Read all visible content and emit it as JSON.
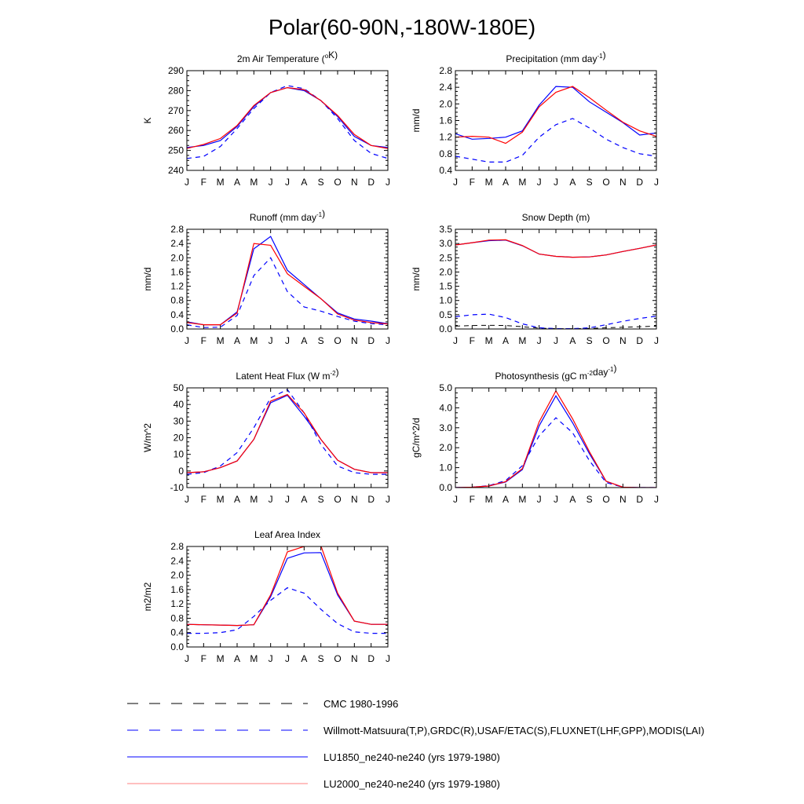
{
  "page_title": "Polar(60-90N,-180W-180E)",
  "months": [
    "J",
    "F",
    "M",
    "A",
    "M",
    "J",
    "J",
    "A",
    "S",
    "O",
    "N",
    "D",
    "J"
  ],
  "legend": [
    {
      "label": "CMC 1980-1996",
      "color": "#000000",
      "style": "dashed"
    },
    {
      "label": "Willmott-Matsuura(T,P),GRDC(R),USAF/ETAC(S),FLUXNET(LHF,GPP),MODIS(LAI)",
      "color": "#0000ff",
      "style": "dashed"
    },
    {
      "label": "LU1850_ne240-ne240 (yrs 1979-1980)",
      "color": "#0000ff",
      "style": "solid"
    },
    {
      "label": "LU2000_ne240-ne240 (yrs 1979-1980)",
      "color": "#ff0000",
      "style": "solid"
    }
  ],
  "chart_data": [
    {
      "type": "line",
      "title": "2m Air Temperature (°K)",
      "title_parts": {
        "pre": "2m Air Temperature (",
        "sup": "o",
        "post": "K)"
      },
      "ylabel": "K",
      "ylim": [
        240,
        290
      ],
      "yticks": [
        "240",
        "250",
        "260",
        "270",
        "280",
        "290"
      ],
      "categories": [
        "J",
        "F",
        "M",
        "A",
        "M",
        "J",
        "J",
        "A",
        "S",
        "O",
        "N",
        "D",
        "J"
      ],
      "series": [
        {
          "style": "obs",
          "values": [
            246,
            247,
            252,
            261,
            271,
            279,
            282.5,
            281,
            275,
            266,
            255,
            248.5,
            246
          ]
        },
        {
          "style": "lu1850",
          "values": [
            251.5,
            252.5,
            255,
            262,
            272,
            279,
            281.5,
            280,
            275,
            267,
            257,
            252.5,
            251.5
          ]
        },
        {
          "style": "lu2000",
          "values": [
            251,
            253,
            256,
            262.5,
            272.5,
            279,
            281.5,
            280.5,
            275,
            267.5,
            258,
            252.5,
            251
          ]
        }
      ]
    },
    {
      "type": "line",
      "title": "Precipitation (mm day-1)",
      "title_parts": {
        "pre": "Precipitation (mm day",
        "sup": "-1",
        "post": ")"
      },
      "ylabel": "mm/d",
      "ylim": [
        0.4,
        2.8
      ],
      "yticks": [
        "0.4",
        "0.8",
        "1.2",
        "1.6",
        "2.0",
        "2.4",
        "2.8"
      ],
      "categories": [
        "J",
        "F",
        "M",
        "A",
        "M",
        "J",
        "J",
        "A",
        "S",
        "O",
        "N",
        "D",
        "J"
      ],
      "series": [
        {
          "style": "obs",
          "values": [
            0.74,
            0.67,
            0.6,
            0.6,
            0.76,
            1.2,
            1.5,
            1.65,
            1.42,
            1.15,
            0.95,
            0.8,
            0.74
          ]
        },
        {
          "style": "lu1850",
          "values": [
            1.28,
            1.15,
            1.17,
            1.2,
            1.35,
            1.97,
            2.42,
            2.4,
            2.05,
            1.8,
            1.55,
            1.25,
            1.3
          ]
        },
        {
          "style": "lu2000",
          "values": [
            1.2,
            1.22,
            1.2,
            1.05,
            1.32,
            1.93,
            2.28,
            2.42,
            2.15,
            1.85,
            1.56,
            1.35,
            1.22
          ]
        }
      ]
    },
    {
      "type": "line",
      "title": "Runoff (mm day-1)",
      "title_parts": {
        "pre": "Runoff (mm day",
        "sup": "-1",
        "post": ")"
      },
      "ylabel": "mm/d",
      "ylim": [
        0.0,
        2.8
      ],
      "yticks": [
        "0.0",
        "0.4",
        "0.8",
        "1.2",
        "1.6",
        "2.0",
        "2.4",
        "2.8"
      ],
      "categories": [
        "J",
        "F",
        "M",
        "A",
        "M",
        "J",
        "J",
        "A",
        "S",
        "O",
        "N",
        "D",
        "J"
      ],
      "series": [
        {
          "style": "obs",
          "values": [
            0.12,
            0.04,
            0.05,
            0.38,
            1.5,
            2.0,
            1.05,
            0.62,
            0.5,
            0.35,
            0.22,
            0.15,
            0.12
          ]
        },
        {
          "style": "lu1850",
          "values": [
            0.2,
            0.12,
            0.12,
            0.48,
            2.25,
            2.6,
            1.65,
            1.25,
            0.85,
            0.45,
            0.28,
            0.22,
            0.15
          ]
        },
        {
          "style": "lu2000",
          "values": [
            0.18,
            0.12,
            0.12,
            0.45,
            2.4,
            2.35,
            1.55,
            1.2,
            0.85,
            0.42,
            0.25,
            0.18,
            0.14
          ]
        }
      ]
    },
    {
      "type": "line",
      "title": "Snow Depth (m)",
      "title_parts": {
        "pre": "Snow Depth (m)",
        "sup": "",
        "post": ""
      },
      "ylabel": "mm/d",
      "ylim": [
        0.0,
        3.5
      ],
      "yticks": [
        "0.0",
        "0.5",
        "1.0",
        "1.5",
        "2.0",
        "2.5",
        "3.0",
        "3.5"
      ],
      "categories": [
        "J",
        "F",
        "M",
        "A",
        "M",
        "J",
        "J",
        "A",
        "S",
        "O",
        "N",
        "D",
        "J"
      ],
      "series": [
        {
          "style": "cmc",
          "values": [
            0.1,
            0.12,
            0.13,
            0.12,
            0.08,
            0.03,
            0.01,
            0.01,
            0.02,
            0.04,
            0.06,
            0.08,
            0.1
          ]
        },
        {
          "style": "obs",
          "values": [
            0.43,
            0.5,
            0.52,
            0.4,
            0.18,
            0.04,
            0.01,
            0.01,
            0.04,
            0.15,
            0.27,
            0.37,
            0.45
          ]
        },
        {
          "style": "lu1850",
          "values": [
            2.95,
            3.03,
            3.1,
            3.12,
            2.92,
            2.63,
            2.55,
            2.52,
            2.53,
            2.6,
            2.72,
            2.83,
            2.95
          ]
        },
        {
          "style": "lu2000",
          "values": [
            2.95,
            3.03,
            3.12,
            3.13,
            2.93,
            2.63,
            2.55,
            2.52,
            2.53,
            2.6,
            2.72,
            2.83,
            2.95
          ]
        }
      ]
    },
    {
      "type": "line",
      "title": "Latent Heat Flux (W m-2)",
      "title_parts": {
        "pre": "Latent Heat Flux (W m",
        "sup": "-2",
        "post": ")"
      },
      "ylabel": "W/m^2",
      "ylim": [
        -10,
        50
      ],
      "yticks": [
        "-10",
        "0",
        "10",
        "20",
        "30",
        "40",
        "50"
      ],
      "categories": [
        "J",
        "F",
        "M",
        "A",
        "M",
        "J",
        "J",
        "A",
        "S",
        "O",
        "N",
        "D",
        "J"
      ],
      "series": [
        {
          "style": "obs",
          "values": [
            -2,
            -1,
            3,
            11,
            26,
            44,
            49,
            35,
            16,
            3,
            -1,
            -2,
            -2
          ]
        },
        {
          "style": "lu1850",
          "values": [
            -1,
            -0.5,
            2,
            6,
            19,
            41,
            45.5,
            33,
            19,
            6.5,
            1,
            -1,
            -1
          ]
        },
        {
          "style": "lu2000",
          "values": [
            -1,
            -0.5,
            2,
            6,
            19,
            42,
            46,
            35,
            19,
            6.5,
            1,
            -1,
            -1
          ]
        }
      ]
    },
    {
      "type": "line",
      "title": "Photosynthesis (gC m-2day-1)",
      "title_parts": {
        "pre": "Photosynthesis (gC m",
        "sup": "-2",
        "post": "day",
        "sup2": "-1",
        "post2": ")"
      },
      "ylabel": "gC/m^2/d",
      "ylim": [
        0.0,
        5.0
      ],
      "yticks": [
        "0.0",
        "1.0",
        "2.0",
        "3.0",
        "4.0",
        "5.0"
      ],
      "categories": [
        "J",
        "F",
        "M",
        "A",
        "M",
        "J",
        "J",
        "A",
        "S",
        "O",
        "N",
        "D",
        "J"
      ],
      "series": [
        {
          "style": "obs",
          "values": [
            0.0,
            0.02,
            0.1,
            0.35,
            1.1,
            2.6,
            3.5,
            2.75,
            1.35,
            0.25,
            0.02,
            0.0,
            0.0
          ]
        },
        {
          "style": "lu1850",
          "values": [
            0.0,
            0.02,
            0.08,
            0.28,
            0.9,
            3.1,
            4.6,
            3.25,
            1.7,
            0.32,
            0.02,
            0.0,
            0.0
          ]
        },
        {
          "style": "lu2000",
          "values": [
            0.0,
            0.02,
            0.08,
            0.3,
            0.95,
            3.3,
            4.85,
            3.45,
            1.8,
            0.32,
            0.02,
            0.0,
            0.0
          ]
        }
      ]
    },
    {
      "type": "line",
      "title": "Leaf Area Index",
      "title_parts": {
        "pre": "Leaf Area Index",
        "sup": "",
        "post": ""
      },
      "ylabel": "m2/m2",
      "ylim": [
        0.0,
        2.8
      ],
      "yticks": [
        "0.0",
        "0.4",
        "0.8",
        "1.2",
        "1.6",
        "2.0",
        "2.4",
        "2.8"
      ],
      "categories": [
        "J",
        "F",
        "M",
        "A",
        "M",
        "J",
        "J",
        "A",
        "S",
        "O",
        "N",
        "D",
        "J"
      ],
      "series": [
        {
          "style": "obs",
          "values": [
            0.38,
            0.38,
            0.4,
            0.48,
            0.85,
            1.3,
            1.65,
            1.5,
            1.05,
            0.65,
            0.42,
            0.38,
            0.38
          ]
        },
        {
          "style": "lu1850",
          "values": [
            0.63,
            0.62,
            0.61,
            0.6,
            0.62,
            1.4,
            2.47,
            2.62,
            2.63,
            1.45,
            0.72,
            0.63,
            0.63
          ]
        },
        {
          "style": "lu2000",
          "values": [
            0.63,
            0.62,
            0.61,
            0.6,
            0.62,
            1.45,
            2.65,
            2.8,
            2.82,
            1.5,
            0.72,
            0.63,
            0.63
          ]
        }
      ]
    }
  ]
}
